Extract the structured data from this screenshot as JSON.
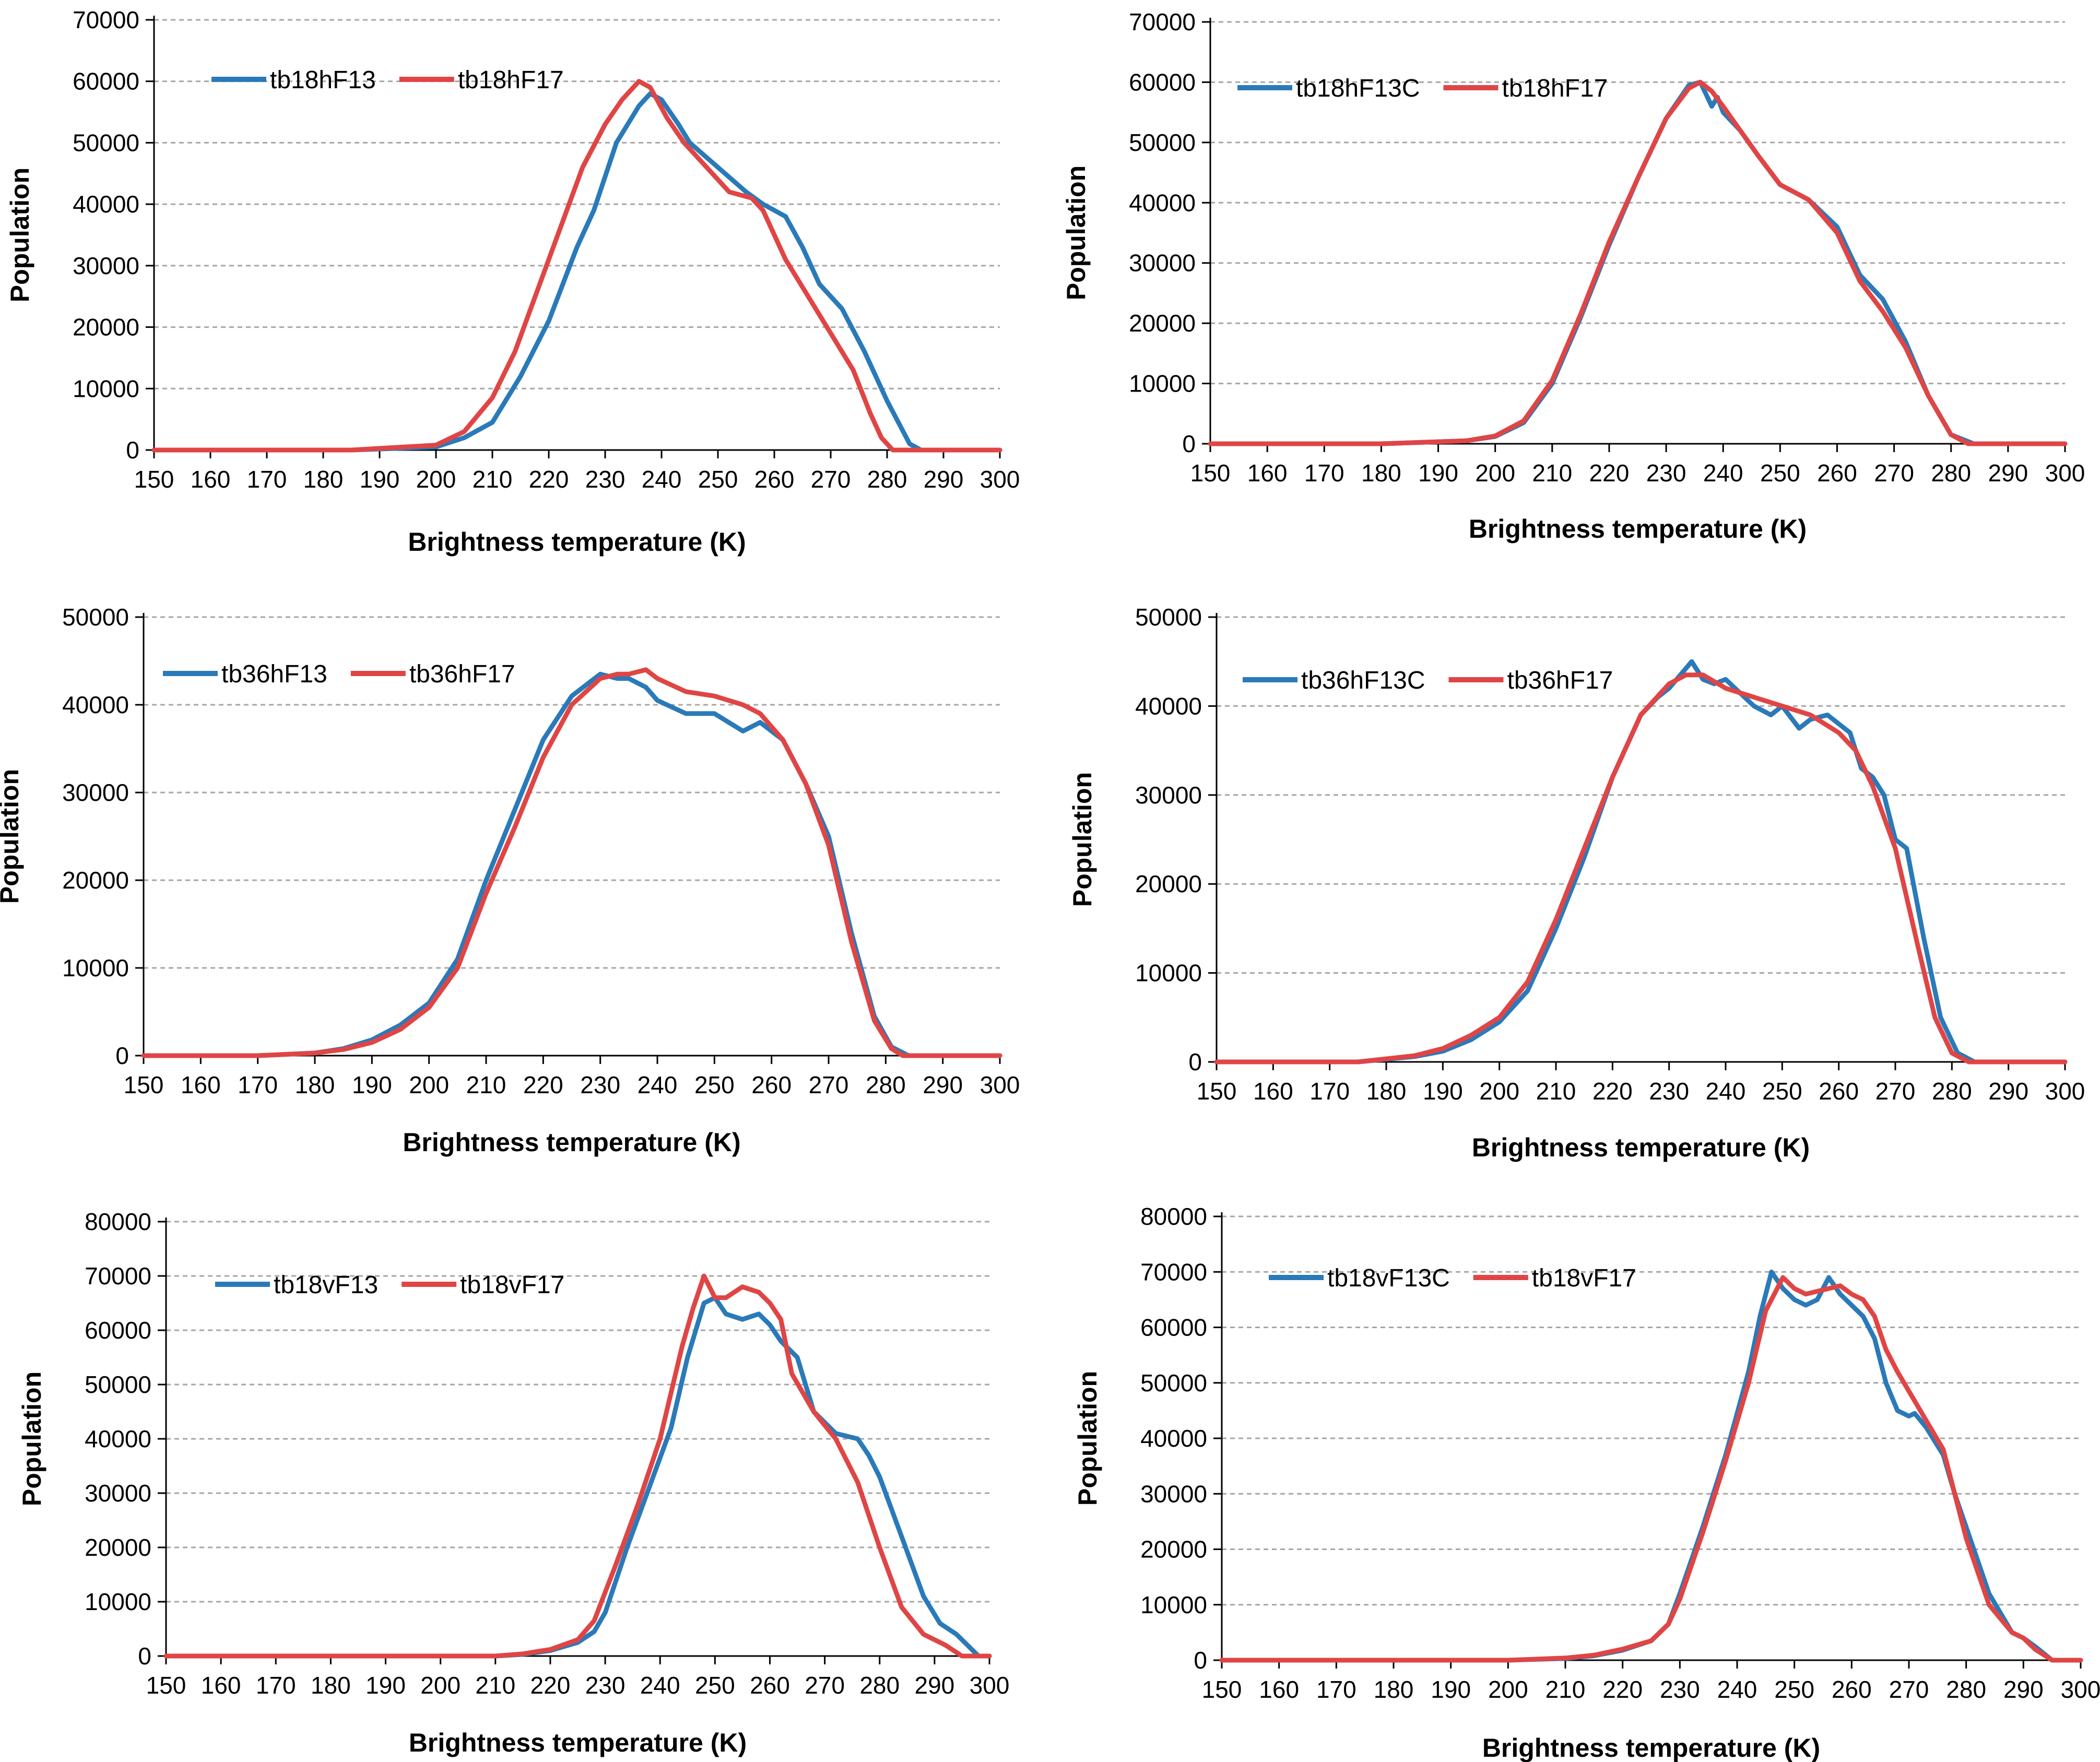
{
  "colors": {
    "series_a": "#2a7ab9",
    "series_b": "#e04545",
    "grid": "#a6a6a6",
    "axis": "#000000"
  },
  "chart_data": [
    {
      "type": "line",
      "xlabel": "Brightness temperature (K)",
      "ylabel": "Population",
      "xlim": [
        150,
        300
      ],
      "xticks": [
        "150",
        "160",
        "170",
        "180",
        "190",
        "200",
        "210",
        "220",
        "230",
        "240",
        "250",
        "260",
        "270",
        "280",
        "290",
        "300"
      ],
      "ylim": [
        0,
        70000
      ],
      "yticks": [
        "0",
        "10000",
        "20000",
        "30000",
        "40000",
        "50000",
        "60000",
        "70000"
      ],
      "grid": "horizontal-dashed",
      "legend_placement": "top-left",
      "series": [
        {
          "name": "tb18hF13",
          "x": [
            150,
            185,
            200,
            205,
            210,
            215,
            220,
            225,
            228,
            232,
            236,
            238,
            240,
            243,
            245,
            250,
            255,
            258,
            262,
            265,
            268,
            272,
            276,
            280,
            284,
            286,
            290,
            300
          ],
          "y": [
            0,
            0,
            500,
            2000,
            4500,
            12000,
            21000,
            33000,
            39000,
            50000,
            56000,
            58000,
            57000,
            53000,
            50000,
            46000,
            42000,
            40000,
            38000,
            33000,
            27000,
            23000,
            16000,
            8000,
            1000,
            0,
            0,
            0
          ]
        },
        {
          "name": "tb18hF17",
          "x": [
            150,
            185,
            200,
            205,
            210,
            214,
            218,
            222,
            226,
            230,
            233,
            236,
            238,
            241,
            244,
            248,
            252,
            256,
            258,
            262,
            266,
            270,
            274,
            277,
            279,
            281,
            285,
            300
          ],
          "y": [
            0,
            0,
            800,
            3000,
            8500,
            16000,
            26000,
            36000,
            46000,
            53000,
            57000,
            60000,
            59000,
            54000,
            50000,
            46000,
            42000,
            41000,
            39000,
            31000,
            25000,
            19000,
            13000,
            6000,
            2000,
            0,
            0,
            0
          ]
        }
      ]
    },
    {
      "type": "line",
      "xlabel": "Brightness temperature (K)",
      "ylabel": "Population",
      "xlim": [
        150,
        300
      ],
      "xticks": [
        "150",
        "160",
        "170",
        "180",
        "190",
        "200",
        "210",
        "220",
        "230",
        "240",
        "250",
        "260",
        "270",
        "280",
        "290",
        "300"
      ],
      "ylim": [
        0,
        70000
      ],
      "yticks": [
        "0",
        "10000",
        "20000",
        "30000",
        "40000",
        "50000",
        "60000",
        "70000"
      ],
      "grid": "horizontal-dashed",
      "legend_placement": "top-left",
      "series": [
        {
          "name": "tb18hF13C",
          "x": [
            150,
            180,
            195,
            200,
            205,
            210,
            215,
            220,
            225,
            230,
            234,
            236,
            237,
            238,
            239,
            240,
            243,
            246,
            250,
            255,
            260,
            264,
            268,
            272,
            276,
            280,
            284,
            300
          ],
          "y": [
            0,
            0,
            500,
            1200,
            3500,
            10000,
            21000,
            33000,
            44000,
            54000,
            59500,
            60000,
            58000,
            56000,
            57500,
            55000,
            52000,
            48000,
            43000,
            40500,
            36000,
            28000,
            24000,
            17000,
            8000,
            1500,
            0,
            0
          ]
        },
        {
          "name": "tb18hF17",
          "x": [
            150,
            180,
            195,
            200,
            205,
            210,
            215,
            220,
            225,
            230,
            234,
            236,
            238,
            240,
            243,
            246,
            250,
            255,
            260,
            264,
            268,
            272,
            276,
            280,
            283,
            300
          ],
          "y": [
            0,
            0,
            500,
            1300,
            3800,
            10500,
            21500,
            33500,
            44000,
            54000,
            59000,
            60000,
            58500,
            56000,
            52000,
            48000,
            43000,
            40500,
            35000,
            27000,
            22000,
            16000,
            8000,
            1500,
            0,
            0
          ]
        }
      ]
    },
    {
      "type": "line",
      "xlabel": "Brightness temperature (K)",
      "ylabel": "Population",
      "xlim": [
        150,
        300
      ],
      "xticks": [
        "150",
        "160",
        "170",
        "180",
        "190",
        "200",
        "210",
        "220",
        "230",
        "240",
        "250",
        "260",
        "270",
        "280",
        "290",
        "300"
      ],
      "ylim": [
        0,
        50000
      ],
      "yticks": [
        "0",
        "10000",
        "20000",
        "30000",
        "40000",
        "50000"
      ],
      "grid": "horizontal-dashed",
      "legend_placement": "top-left",
      "series": [
        {
          "name": "tb36hF13",
          "x": [
            150,
            170,
            180,
            185,
            190,
            195,
            200,
            205,
            210,
            215,
            220,
            225,
            230,
            233,
            235,
            238,
            240,
            245,
            250,
            255,
            258,
            262,
            266,
            270,
            274,
            278,
            281,
            284,
            300
          ],
          "y": [
            0,
            0,
            300,
            800,
            1800,
            3500,
            6000,
            11000,
            20000,
            28000,
            36000,
            41000,
            43500,
            43000,
            43000,
            42000,
            40500,
            39000,
            39000,
            37000,
            38000,
            36000,
            31000,
            25000,
            14000,
            4500,
            1000,
            0,
            0
          ]
        },
        {
          "name": "tb36hF17",
          "x": [
            150,
            170,
            180,
            185,
            190,
            195,
            200,
            205,
            210,
            215,
            220,
            225,
            230,
            233,
            235,
            238,
            240,
            245,
            250,
            255,
            258,
            262,
            266,
            270,
            274,
            278,
            281,
            283,
            300
          ],
          "y": [
            0,
            0,
            300,
            700,
            1500,
            3000,
            5500,
            10000,
            18500,
            26000,
            34000,
            40000,
            43000,
            43500,
            43500,
            44000,
            43000,
            41500,
            41000,
            40000,
            39000,
            36000,
            31000,
            24000,
            13000,
            4000,
            800,
            0,
            0
          ]
        }
      ]
    },
    {
      "type": "line",
      "xlabel": "Brightness temperature (K)",
      "ylabel": "Population",
      "xlim": [
        150,
        300
      ],
      "xticks": [
        "150",
        "160",
        "170",
        "180",
        "190",
        "200",
        "210",
        "220",
        "230",
        "240",
        "250",
        "260",
        "270",
        "280",
        "290",
        "300"
      ],
      "ylim": [
        0,
        50000
      ],
      "yticks": [
        "0",
        "10000",
        "20000",
        "30000",
        "40000",
        "50000"
      ],
      "grid": "horizontal-dashed",
      "legend_placement": "top-left",
      "series": [
        {
          "name": "tb36hF13C",
          "x": [
            150,
            175,
            185,
            190,
            195,
            200,
            205,
            210,
            215,
            220,
            225,
            228,
            230,
            232,
            234,
            236,
            238,
            240,
            245,
            248,
            250,
            253,
            255,
            258,
            260,
            262,
            264,
            266,
            268,
            270,
            272,
            275,
            278,
            281,
            284,
            300
          ],
          "y": [
            0,
            0,
            600,
            1200,
            2500,
            4500,
            8000,
            15000,
            23000,
            32000,
            39000,
            41000,
            42000,
            43500,
            45000,
            43000,
            42500,
            43000,
            40000,
            39000,
            40000,
            37500,
            38500,
            39000,
            38000,
            37000,
            33000,
            32000,
            30000,
            25000,
            24000,
            14000,
            5000,
            1000,
            0,
            0
          ]
        },
        {
          "name": "tb36hF17",
          "x": [
            150,
            175,
            185,
            190,
            195,
            200,
            205,
            210,
            215,
            220,
            225,
            230,
            233,
            236,
            240,
            245,
            250,
            255,
            260,
            263,
            266,
            270,
            274,
            277,
            280,
            283,
            300
          ],
          "y": [
            0,
            0,
            700,
            1500,
            3000,
            5000,
            9000,
            16000,
            24000,
            32000,
            39000,
            42500,
            43500,
            43500,
            42000,
            41000,
            40000,
            39000,
            37000,
            35000,
            31000,
            24000,
            13000,
            5000,
            1000,
            0,
            0
          ]
        }
      ]
    },
    {
      "type": "line",
      "xlabel": "Brightness temperature (K)",
      "ylabel": "Population",
      "xlim": [
        150,
        300
      ],
      "xticks": [
        "150",
        "160",
        "170",
        "180",
        "190",
        "200",
        "210",
        "220",
        "230",
        "240",
        "250",
        "260",
        "270",
        "280",
        "290",
        "300"
      ],
      "ylim": [
        0,
        80000
      ],
      "yticks": [
        "0",
        "10000",
        "20000",
        "30000",
        "40000",
        "50000",
        "60000",
        "70000",
        "80000"
      ],
      "grid": "horizontal-dashed",
      "legend_placement": "top-left",
      "series": [
        {
          "name": "tb18vF13",
          "x": [
            150,
            210,
            215,
            220,
            225,
            228,
            230,
            234,
            238,
            242,
            245,
            248,
            250,
            252,
            255,
            258,
            260,
            262,
            265,
            268,
            272,
            276,
            278,
            280,
            284,
            288,
            291,
            294,
            296,
            298,
            300
          ],
          "y": [
            0,
            0,
            300,
            1000,
            2500,
            4500,
            8000,
            20000,
            31000,
            42000,
            55000,
            65000,
            66000,
            63000,
            62000,
            63000,
            61000,
            58000,
            55000,
            45000,
            41000,
            40000,
            37000,
            33000,
            22000,
            11000,
            6000,
            4000,
            2000,
            0,
            0
          ]
        },
        {
          "name": "tb18vF17",
          "x": [
            150,
            210,
            215,
            220,
            225,
            228,
            232,
            236,
            240,
            244,
            246,
            248,
            250,
            252,
            255,
            258,
            260,
            262,
            264,
            268,
            272,
            276,
            280,
            284,
            288,
            292,
            295,
            300
          ],
          "y": [
            0,
            0,
            400,
            1200,
            3000,
            6500,
            17000,
            28000,
            40000,
            57000,
            64000,
            70000,
            66000,
            66000,
            68000,
            67000,
            65000,
            62000,
            52000,
            45000,
            40000,
            32000,
            20000,
            9000,
            4000,
            2000,
            0,
            0
          ]
        }
      ]
    },
    {
      "type": "line",
      "xlabel": "Brightness temperature (K)",
      "ylabel": "Population",
      "xlim": [
        150,
        300
      ],
      "xticks": [
        "150",
        "160",
        "170",
        "180",
        "190",
        "200",
        "210",
        "220",
        "230",
        "240",
        "250",
        "260",
        "270",
        "280",
        "290",
        "300"
      ],
      "ylim": [
        0,
        80000
      ],
      "yticks": [
        "0",
        "10000",
        "20000",
        "30000",
        "40000",
        "50000",
        "60000",
        "70000",
        "80000"
      ],
      "grid": "horizontal-dashed",
      "legend_placement": "top-left",
      "series": [
        {
          "name": "tb18vF13C",
          "x": [
            150,
            200,
            210,
            215,
            220,
            225,
            228,
            230,
            234,
            238,
            242,
            244,
            246,
            248,
            250,
            252,
            254,
            256,
            258,
            260,
            262,
            264,
            266,
            268,
            270,
            271,
            273,
            276,
            278,
            280,
            284,
            288,
            290,
            292,
            295,
            300
          ],
          "y": [
            0,
            0,
            300,
            800,
            1800,
            3500,
            6500,
            12000,
            24000,
            37000,
            52000,
            62000,
            70000,
            67000,
            65000,
            64000,
            65000,
            69000,
            66000,
            64000,
            62000,
            58000,
            50000,
            45000,
            44000,
            44500,
            42000,
            37000,
            30000,
            24000,
            12000,
            5000,
            4000,
            2500,
            0,
            0
          ]
        },
        {
          "name": "tb18vF17",
          "x": [
            150,
            200,
            210,
            215,
            220,
            225,
            228,
            230,
            234,
            238,
            242,
            245,
            248,
            250,
            252,
            254,
            256,
            258,
            260,
            262,
            264,
            266,
            268,
            272,
            276,
            280,
            284,
            288,
            290,
            292,
            295,
            300
          ],
          "y": [
            0,
            0,
            400,
            900,
            2000,
            3500,
            6500,
            11000,
            23000,
            36000,
            50000,
            63000,
            69000,
            67000,
            66000,
            66500,
            67000,
            67500,
            66000,
            65000,
            62000,
            56000,
            52000,
            45000,
            38000,
            22000,
            10000,
            5000,
            4000,
            2000,
            0,
            0
          ]
        }
      ]
    }
  ]
}
